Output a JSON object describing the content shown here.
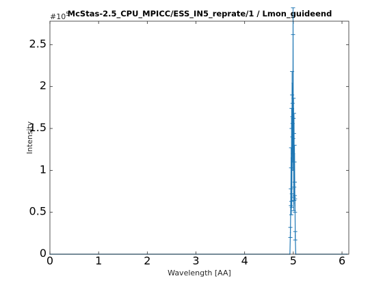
{
  "window": {
    "title": "McStas-2.5_CPU_MPICC/ESS_IN5_reprate/1 / Lmon_guideend"
  },
  "chart_data": {
    "type": "line",
    "title": "McStas-2.5_CPU_MPICC/ESS_IN5_reprate/1 / Lmon_guideend",
    "xlabel": "Wavelength [AA]",
    "ylabel": "Intensity",
    "y_exponent_base": "#10",
    "y_exponent_power": "5",
    "xlim": [
      0,
      6.14
    ],
    "ylim": [
      0,
      2.78
    ],
    "xticks": [
      0,
      1,
      2,
      3,
      4,
      5,
      6
    ],
    "xtick_labels": [
      "0",
      "1",
      "2",
      "3",
      "4",
      "5",
      "6"
    ],
    "yticks": [
      0,
      0.5,
      1,
      1.5,
      2,
      2.5
    ],
    "ytick_labels": [
      "0",
      "0.5",
      "1",
      "1.5",
      "2",
      "2.5"
    ],
    "grid": false,
    "series_color": "#1f77b4",
    "axis_color": "#262626",
    "series": [
      {
        "x": [
          0,
          4.93,
          4.94,
          4.95,
          4.955,
          4.96,
          4.965,
          4.97,
          4.975,
          4.98,
          4.985,
          4.99,
          4.995,
          5.0,
          5.005,
          5.01,
          5.015,
          5.02,
          5.025,
          5.03,
          5.035,
          5.04,
          5.05,
          6.1
        ],
        "y": [
          0,
          0,
          0.26,
          0.68,
          1.15,
          0.55,
          1.62,
          0.64,
          2.04,
          1.52,
          1.68,
          1.1,
          2.78,
          1.5,
          1.74,
          0.6,
          1.56,
          0.72,
          1.2,
          0.78,
          0.58,
          0.22,
          0,
          0
        ],
        "err": [
          0,
          0,
          0.06,
          0.1,
          0.12,
          0.08,
          0.12,
          0.08,
          0.14,
          0.12,
          0.12,
          0.1,
          0.16,
          0.12,
          0.12,
          0.08,
          0.12,
          0.08,
          0.1,
          0.08,
          0.08,
          0.05,
          0,
          0
        ]
      }
    ]
  }
}
